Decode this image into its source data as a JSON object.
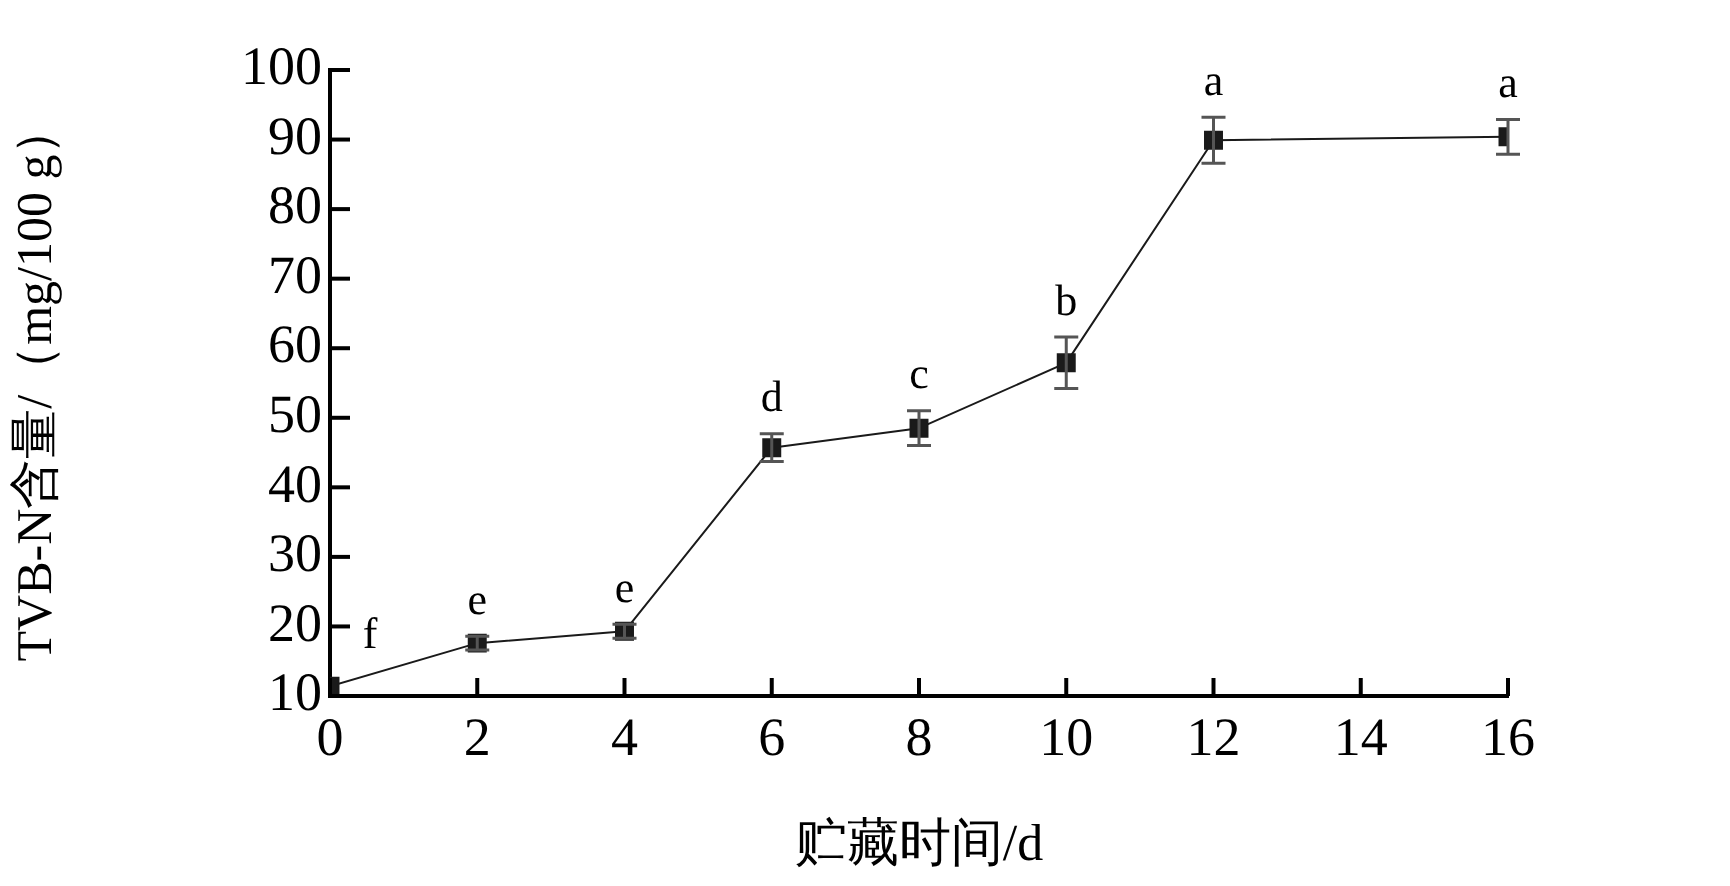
{
  "chart_data": {
    "type": "line",
    "xlabel": "贮藏时间/d",
    "ylabel": "TVB-N含量/（mg/100 g）",
    "x": [
      0,
      2,
      4,
      6,
      8,
      10,
      12,
      16
    ],
    "series": [
      {
        "color": "#1a1a1a",
        "values": [
          11.4,
          17.6,
          19.3,
          45.7,
          48.5,
          57.9,
          89.9,
          90.4
        ],
        "errors": [
          null,
          1,
          1,
          2,
          2.5,
          3.7,
          3.3,
          2.5
        ]
      }
    ],
    "xlim": [
      0,
      16
    ],
    "xticks": [
      0,
      2,
      4,
      6,
      8,
      10,
      12,
      14,
      16
    ],
    "ylim": [
      10,
      100
    ],
    "yticks": [
      10,
      20,
      30,
      40,
      50,
      60,
      70,
      80,
      90,
      100
    ],
    "grid": false,
    "legend": false,
    "marker": "square",
    "line_style": "solid",
    "annotations": [
      {
        "text": "f",
        "x": 0,
        "y": 11.4
      },
      {
        "text": "e",
        "x": 2,
        "y": 17.6
      },
      {
        "text": "e",
        "x": 4,
        "y": 19.3
      },
      {
        "text": "d",
        "x": 6,
        "y": 45.7
      },
      {
        "text": "c",
        "x": 8,
        "y": 48.5
      },
      {
        "text": "b",
        "x": 10,
        "y": 57.9
      },
      {
        "text": "a",
        "x": 12,
        "y": 89.9
      },
      {
        "text": "a",
        "x": 16,
        "y": 90.4
      }
    ]
  }
}
